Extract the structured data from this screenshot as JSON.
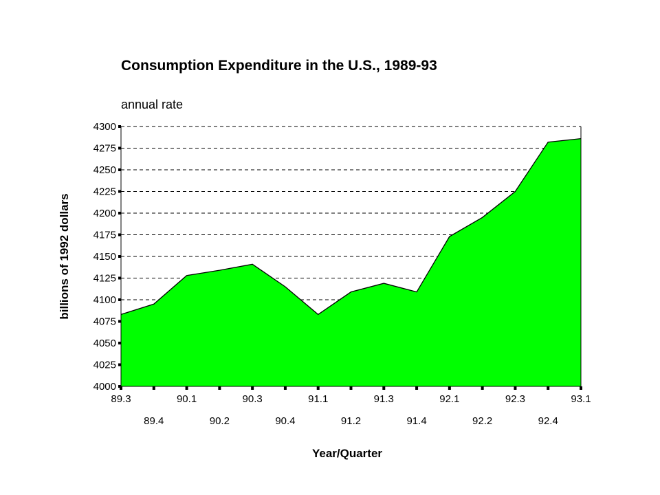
{
  "chart_data": {
    "type": "area",
    "title": "Consumption Expenditure in the U.S., 1989-93",
    "subtitle": "annual rate",
    "xlabel": "Year/Quarter",
    "ylabel": "billions of 1992 dollars",
    "ylim": [
      4000,
      4300
    ],
    "y_ticks": [
      4000,
      4025,
      4050,
      4075,
      4100,
      4125,
      4150,
      4175,
      4200,
      4225,
      4250,
      4275,
      4300
    ],
    "grid": "horizontal dashed",
    "x": [
      "89.3",
      "89.4",
      "90.1",
      "90.2",
      "90.3",
      "90.4",
      "91.1",
      "91.2",
      "91.3",
      "91.4",
      "92.1",
      "92.2",
      "92.3",
      "92.4",
      "93.1"
    ],
    "values": [
      4083,
      4095,
      4128,
      4134,
      4141,
      4115,
      4083,
      4109,
      4119,
      4109,
      4173,
      4195,
      4225,
      4282,
      4286
    ],
    "fill_color": "#00ff00",
    "line_color": "#000000"
  }
}
